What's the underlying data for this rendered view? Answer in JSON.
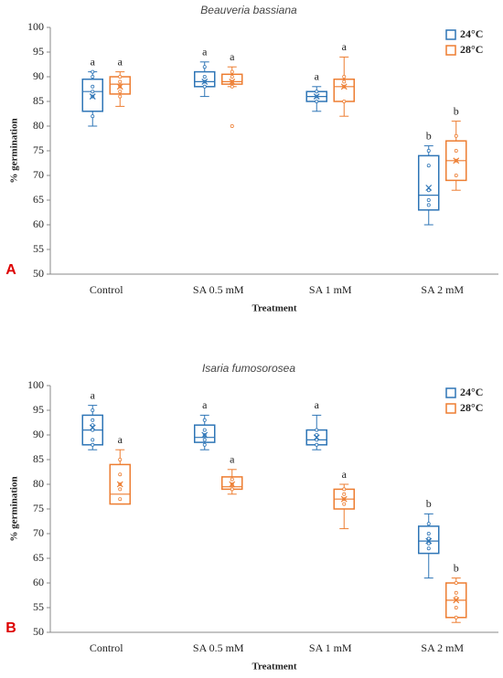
{
  "chart_data": [
    {
      "type": "box",
      "title": "Beauveria bassiana",
      "panel_label": "A",
      "xlabel": "Treatment",
      "ylabel": "% germination",
      "categories": [
        "Control",
        "SA 0.5 mM",
        "SA 1 mM",
        "SA 2 mM"
      ],
      "ylim": [
        50,
        100
      ],
      "yticks": [
        50,
        55,
        60,
        65,
        70,
        75,
        80,
        85,
        90,
        95,
        100
      ],
      "legend": "top-right",
      "series": [
        {
          "name": "24°C",
          "color": "#2e75b6",
          "boxes": [
            {
              "min": 80,
              "q1": 83,
              "median": 87,
              "q3": 89.5,
              "max": 91,
              "mean": 86,
              "points": [
                82,
                86,
                87,
                88,
                90,
                91
              ],
              "letter": "a"
            },
            {
              "min": 86,
              "q1": 88,
              "median": 89,
              "q3": 91,
              "max": 93,
              "mean": 89,
              "points": [
                88,
                89,
                90,
                92
              ],
              "letter": "a"
            },
            {
              "min": 83,
              "q1": 85,
              "median": 86,
              "q3": 87,
              "max": 88,
              "mean": 86,
              "points": [
                85,
                86,
                87
              ],
              "letter": "a"
            },
            {
              "min": 60,
              "q1": 63,
              "median": 66,
              "q3": 74,
              "max": 76,
              "mean": 67.5,
              "points": [
                64,
                65,
                67,
                72,
                75
              ],
              "letter": "b"
            }
          ]
        },
        {
          "name": "28°C",
          "color": "#ed7d31",
          "boxes": [
            {
              "min": 84,
              "q1": 86.5,
              "median": 88.5,
              "q3": 90,
              "max": 91,
              "mean": 88,
              "points": [
                86,
                87,
                88,
                89,
                90
              ],
              "letter": "a"
            },
            {
              "min": 88,
              "q1": 88.5,
              "median": 89,
              "q3": 90.5,
              "max": 92,
              "mean": 89,
              "points": [
                80,
                88,
                89,
                90,
                91
              ],
              "letter": "a"
            },
            {
              "min": 82,
              "q1": 85,
              "median": 88,
              "q3": 89.5,
              "max": 94,
              "mean": 88,
              "points": [
                85,
                88,
                89,
                90
              ],
              "letter": "a"
            },
            {
              "min": 67,
              "q1": 69,
              "median": 73,
              "q3": 77,
              "max": 81,
              "mean": 73,
              "points": [
                70,
                73,
                75,
                78
              ],
              "letter": "b"
            }
          ]
        }
      ]
    },
    {
      "type": "box",
      "title": "Isaria fumosorosea",
      "panel_label": "B",
      "xlabel": "Treatment",
      "ylabel": "% germination",
      "categories": [
        "Control",
        "SA 0.5 mM",
        "SA 1 mM",
        "SA 2 mM"
      ],
      "ylim": [
        50,
        100
      ],
      "yticks": [
        50,
        55,
        60,
        65,
        70,
        75,
        80,
        85,
        90,
        95,
        100
      ],
      "legend": "top-right",
      "series": [
        {
          "name": "24°C",
          "color": "#2e75b6",
          "boxes": [
            {
              "min": 87,
              "q1": 88,
              "median": 91,
              "q3": 94,
              "max": 96,
              "mean": 91.5,
              "points": [
                88,
                89,
                91,
                92,
                93,
                95
              ],
              "letter": "a"
            },
            {
              "min": 87,
              "q1": 88.5,
              "median": 89.5,
              "q3": 92,
              "max": 94,
              "mean": 90,
              "points": [
                88,
                89,
                90,
                91,
                93
              ],
              "letter": "a"
            },
            {
              "min": 87,
              "q1": 88,
              "median": 89,
              "q3": 91,
              "max": 94,
              "mean": 89.5,
              "points": [
                88,
                89,
                90,
                91
              ],
              "letter": "a"
            },
            {
              "min": 61,
              "q1": 66,
              "median": 68.5,
              "q3": 71.5,
              "max": 74,
              "mean": 68.5,
              "points": [
                67,
                68,
                69,
                70,
                72
              ],
              "letter": "b"
            }
          ]
        },
        {
          "name": "28°C",
          "color": "#ed7d31",
          "boxes": [
            {
              "min": 76,
              "q1": 76,
              "median": 78,
              "q3": 84,
              "max": 87,
              "mean": 80,
              "points": [
                77,
                79,
                80,
                82,
                85
              ],
              "letter": "a"
            },
            {
              "min": 78,
              "q1": 79,
              "median": 79.5,
              "q3": 81.5,
              "max": 83,
              "mean": 80,
              "points": [
                79,
                80,
                81
              ],
              "letter": "a"
            },
            {
              "min": 71,
              "q1": 75,
              "median": 77,
              "q3": 79,
              "max": 80,
              "mean": 77,
              "points": [
                76,
                77,
                78,
                79
              ],
              "letter": "a"
            },
            {
              "min": 52,
              "q1": 53,
              "median": 56.5,
              "q3": 60,
              "max": 61,
              "mean": 56.5,
              "points": [
                53,
                55,
                57,
                58,
                60
              ],
              "letter": "b"
            }
          ]
        }
      ]
    }
  ]
}
